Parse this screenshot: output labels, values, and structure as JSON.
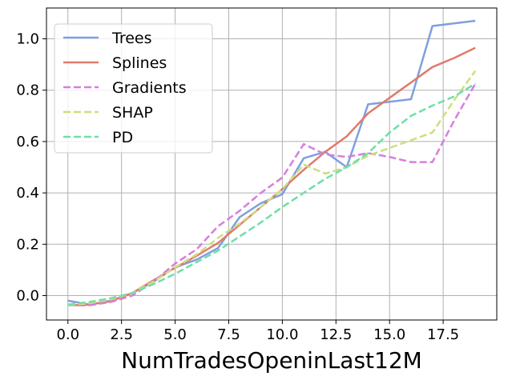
{
  "chart_data": {
    "type": "line",
    "title": "",
    "xlabel": "NumTradesOpeninLast12M",
    "ylabel": "",
    "xlim": [
      -1.0,
      20.0
    ],
    "ylim": [
      -0.095,
      1.12
    ],
    "x_ticks": [
      0.0,
      2.5,
      5.0,
      7.5,
      10.0,
      12.5,
      15.0,
      17.5
    ],
    "x_tick_labels": [
      "0.0",
      "2.5",
      "5.0",
      "7.5",
      "10.0",
      "12.5",
      "15.0",
      "17.5"
    ],
    "y_ticks": [
      0.0,
      0.2,
      0.4,
      0.6,
      0.8,
      1.0
    ],
    "y_tick_labels": [
      "0.0",
      "0.2",
      "0.4",
      "0.6",
      "0.8",
      "1.0"
    ],
    "grid": true,
    "legend_position": "top-left",
    "series": [
      {
        "name": "Trees",
        "color": "#7f9fdf",
        "dashed": false,
        "x": [
          0,
          1,
          2,
          3,
          4,
          5,
          6,
          7,
          8,
          9,
          10,
          11,
          12,
          13,
          14,
          15,
          16,
          17,
          18,
          19
        ],
        "y": [
          -0.02,
          -0.035,
          -0.02,
          0.01,
          0.055,
          0.11,
          0.14,
          0.185,
          0.305,
          0.36,
          0.395,
          0.535,
          0.56,
          0.5,
          0.745,
          0.755,
          0.765,
          1.05,
          1.06,
          1.07
        ]
      },
      {
        "name": "Splines",
        "color": "#e07b6b",
        "dashed": false,
        "x": [
          0,
          1,
          2,
          3,
          4,
          5,
          6,
          7,
          8,
          9,
          10,
          11,
          12,
          13,
          14,
          15,
          16,
          17,
          18,
          19
        ],
        "y": [
          -0.038,
          -0.035,
          -0.022,
          0.01,
          0.06,
          0.108,
          0.155,
          0.205,
          0.275,
          0.345,
          0.415,
          0.49,
          0.56,
          0.62,
          0.71,
          0.77,
          0.83,
          0.89,
          0.925,
          0.965
        ]
      },
      {
        "name": "Gradients",
        "color": "#d67fdc",
        "dashed": true,
        "x": [
          0,
          1,
          2,
          3,
          4,
          5,
          6,
          7,
          8,
          9,
          10,
          11,
          12,
          13,
          14,
          15,
          16,
          17,
          18,
          19
        ],
        "y": [
          -0.038,
          -0.038,
          -0.025,
          0.0,
          0.055,
          0.125,
          0.18,
          0.27,
          0.33,
          0.4,
          0.46,
          0.59,
          0.55,
          0.54,
          0.555,
          0.54,
          0.52,
          0.52,
          0.68,
          0.825
        ]
      },
      {
        "name": "SHAP",
        "color": "#ccdf7f",
        "dashed": true,
        "x": [
          0,
          1,
          2,
          3,
          4,
          5,
          6,
          7,
          8,
          9,
          10,
          11,
          12,
          13,
          14,
          15,
          16,
          17,
          18,
          19
        ],
        "y": [
          -0.038,
          -0.03,
          -0.015,
          0.01,
          0.055,
          0.11,
          0.16,
          0.225,
          0.28,
          0.345,
          0.415,
          0.51,
          0.475,
          0.5,
          0.545,
          0.575,
          0.605,
          0.635,
          0.76,
          0.875
        ]
      },
      {
        "name": "PD",
        "color": "#6fdfa6",
        "dashed": true,
        "x": [
          0,
          1,
          2,
          3,
          4,
          5,
          6,
          7,
          8,
          9,
          10,
          11,
          12,
          13,
          14,
          15,
          16,
          17,
          18,
          19
        ],
        "y": [
          -0.035,
          -0.025,
          -0.01,
          0.01,
          0.045,
          0.085,
          0.13,
          0.175,
          0.23,
          0.285,
          0.345,
          0.4,
          0.455,
          0.5,
          0.555,
          0.635,
          0.7,
          0.74,
          0.775,
          0.825
        ]
      }
    ]
  }
}
